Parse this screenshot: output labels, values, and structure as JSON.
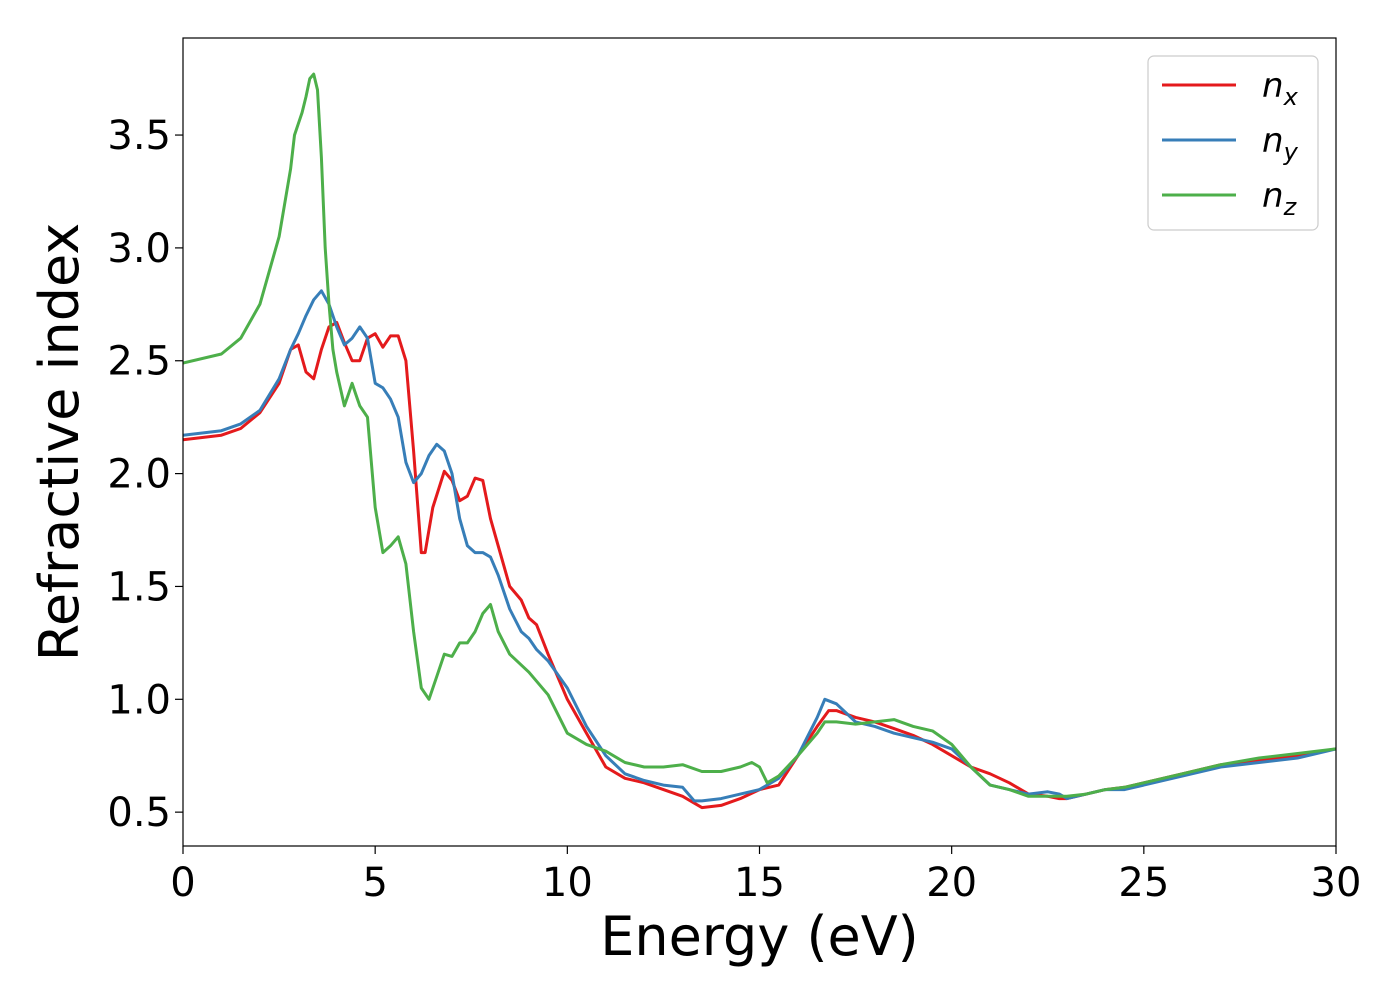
{
  "chart_data": {
    "type": "line",
    "xlabel": "Energy (eV)",
    "ylabel": "Refractive index",
    "xlim": [
      0,
      30
    ],
    "ylim": [
      0.35,
      3.93
    ],
    "x_ticks": [
      0,
      5,
      10,
      15,
      20,
      25,
      30
    ],
    "x_tick_labels": [
      "0",
      "5",
      "10",
      "15",
      "20",
      "25",
      "30"
    ],
    "y_ticks": [
      0.5,
      1.0,
      1.5,
      2.0,
      2.5,
      3.0,
      3.5
    ],
    "y_tick_labels": [
      "0.5",
      "1.0",
      "1.5",
      "2.0",
      "2.5",
      "3.0",
      "3.5"
    ],
    "grid": false,
    "legend_position": "top-right",
    "series": [
      {
        "name": "n",
        "subscript": "x",
        "color": "#e41a1c",
        "x": [
          0,
          1,
          1.5,
          2,
          2.5,
          2.8,
          3.0,
          3.2,
          3.4,
          3.6,
          3.8,
          4.0,
          4.2,
          4.4,
          4.6,
          4.8,
          5.0,
          5.2,
          5.4,
          5.6,
          5.8,
          6.0,
          6.2,
          6.3,
          6.5,
          6.8,
          7.0,
          7.2,
          7.4,
          7.6,
          7.8,
          8.0,
          8.2,
          8.5,
          8.8,
          9.0,
          9.2,
          9.5,
          10.0,
          10.5,
          11.0,
          11.5,
          12.0,
          12.5,
          13.0,
          13.5,
          14.0,
          14.5,
          15.0,
          15.5,
          16.0,
          16.5,
          16.8,
          17.0,
          17.5,
          18.0,
          18.5,
          19.0,
          19.5,
          20.0,
          20.5,
          21.0,
          21.5,
          22.0,
          22.5,
          22.8,
          23.0,
          23.5,
          24.0,
          24.5,
          25.0,
          26.0,
          27.0,
          28.0,
          29.0,
          30.0
        ],
        "y": [
          2.15,
          2.17,
          2.2,
          2.27,
          2.4,
          2.55,
          2.57,
          2.45,
          2.42,
          2.55,
          2.65,
          2.67,
          2.58,
          2.5,
          2.5,
          2.6,
          2.62,
          2.56,
          2.61,
          2.61,
          2.5,
          2.1,
          1.65,
          1.65,
          1.85,
          2.01,
          1.97,
          1.88,
          1.9,
          1.98,
          1.97,
          1.8,
          1.68,
          1.5,
          1.44,
          1.36,
          1.33,
          1.2,
          1.0,
          0.85,
          0.7,
          0.65,
          0.63,
          0.6,
          0.57,
          0.52,
          0.53,
          0.56,
          0.6,
          0.62,
          0.75,
          0.88,
          0.95,
          0.95,
          0.92,
          0.9,
          0.87,
          0.84,
          0.8,
          0.75,
          0.7,
          0.67,
          0.63,
          0.58,
          0.57,
          0.56,
          0.56,
          0.58,
          0.6,
          0.61,
          0.63,
          0.67,
          0.71,
          0.73,
          0.75,
          0.78
        ]
      },
      {
        "name": "n",
        "subscript": "y",
        "color": "#377eb8",
        "x": [
          0,
          1,
          1.5,
          2,
          2.5,
          2.8,
          3.0,
          3.2,
          3.4,
          3.6,
          3.8,
          4.0,
          4.2,
          4.4,
          4.6,
          4.8,
          5.0,
          5.2,
          5.4,
          5.6,
          5.8,
          6.0,
          6.2,
          6.4,
          6.6,
          6.8,
          7.0,
          7.2,
          7.4,
          7.6,
          7.8,
          8.0,
          8.2,
          8.5,
          8.8,
          9.0,
          9.2,
          9.5,
          10.0,
          10.5,
          11.0,
          11.5,
          12.0,
          12.5,
          13.0,
          13.3,
          13.5,
          14.0,
          14.5,
          15.0,
          15.5,
          16.0,
          16.5,
          16.7,
          17.0,
          17.5,
          18.0,
          18.5,
          19.0,
          19.5,
          20.0,
          20.5,
          21.0,
          21.5,
          22.0,
          22.5,
          22.8,
          23.0,
          23.5,
          24.0,
          24.5,
          25.0,
          26.0,
          27.0,
          28.0,
          29.0,
          30.0
        ],
        "y": [
          2.17,
          2.19,
          2.22,
          2.28,
          2.42,
          2.55,
          2.62,
          2.7,
          2.77,
          2.81,
          2.75,
          2.65,
          2.57,
          2.6,
          2.65,
          2.6,
          2.4,
          2.38,
          2.33,
          2.25,
          2.05,
          1.96,
          2.0,
          2.08,
          2.13,
          2.1,
          2.0,
          1.8,
          1.68,
          1.65,
          1.65,
          1.63,
          1.55,
          1.4,
          1.3,
          1.27,
          1.22,
          1.17,
          1.05,
          0.88,
          0.75,
          0.67,
          0.64,
          0.62,
          0.61,
          0.55,
          0.55,
          0.56,
          0.58,
          0.6,
          0.65,
          0.75,
          0.92,
          1.0,
          0.98,
          0.9,
          0.88,
          0.85,
          0.83,
          0.81,
          0.78,
          0.7,
          0.62,
          0.6,
          0.58,
          0.59,
          0.58,
          0.56,
          0.58,
          0.6,
          0.6,
          0.62,
          0.66,
          0.7,
          0.72,
          0.74,
          0.78
        ]
      },
      {
        "name": "n",
        "subscript": "z",
        "color": "#4daf4a",
        "x": [
          0,
          1,
          1.5,
          2,
          2.5,
          2.8,
          2.9,
          3.0,
          3.1,
          3.2,
          3.3,
          3.4,
          3.5,
          3.6,
          3.7,
          3.8,
          3.9,
          4.0,
          4.2,
          4.3,
          4.4,
          4.5,
          4.6,
          4.8,
          5.0,
          5.2,
          5.4,
          5.6,
          5.8,
          6.0,
          6.2,
          6.4,
          6.6,
          6.8,
          7.0,
          7.2,
          7.4,
          7.6,
          7.8,
          8.0,
          8.2,
          8.5,
          9.0,
          9.5,
          10.0,
          10.5,
          11.0,
          11.5,
          12.0,
          12.5,
          13.0,
          13.5,
          14.0,
          14.5,
          14.8,
          15.0,
          15.2,
          15.5,
          16.0,
          16.5,
          16.7,
          17.0,
          17.5,
          18.0,
          18.5,
          19.0,
          19.5,
          20.0,
          20.5,
          21.0,
          21.5,
          22.0,
          22.5,
          22.8,
          23.0,
          23.5,
          24.0,
          24.5,
          25.0,
          26.0,
          27.0,
          28.0,
          29.0,
          30.0
        ],
        "y": [
          2.49,
          2.53,
          2.6,
          2.75,
          3.05,
          3.35,
          3.5,
          3.55,
          3.6,
          3.67,
          3.75,
          3.77,
          3.7,
          3.4,
          3.0,
          2.75,
          2.55,
          2.45,
          2.3,
          2.35,
          2.4,
          2.35,
          2.3,
          2.25,
          1.85,
          1.65,
          1.68,
          1.72,
          1.6,
          1.3,
          1.05,
          1.0,
          1.1,
          1.2,
          1.19,
          1.25,
          1.25,
          1.3,
          1.38,
          1.42,
          1.3,
          1.2,
          1.12,
          1.02,
          0.85,
          0.8,
          0.77,
          0.72,
          0.7,
          0.7,
          0.71,
          0.68,
          0.68,
          0.7,
          0.72,
          0.7,
          0.63,
          0.66,
          0.75,
          0.85,
          0.9,
          0.9,
          0.89,
          0.9,
          0.91,
          0.88,
          0.86,
          0.8,
          0.7,
          0.62,
          0.6,
          0.57,
          0.57,
          0.57,
          0.57,
          0.58,
          0.6,
          0.61,
          0.63,
          0.67,
          0.71,
          0.74,
          0.76,
          0.78
        ]
      }
    ]
  }
}
